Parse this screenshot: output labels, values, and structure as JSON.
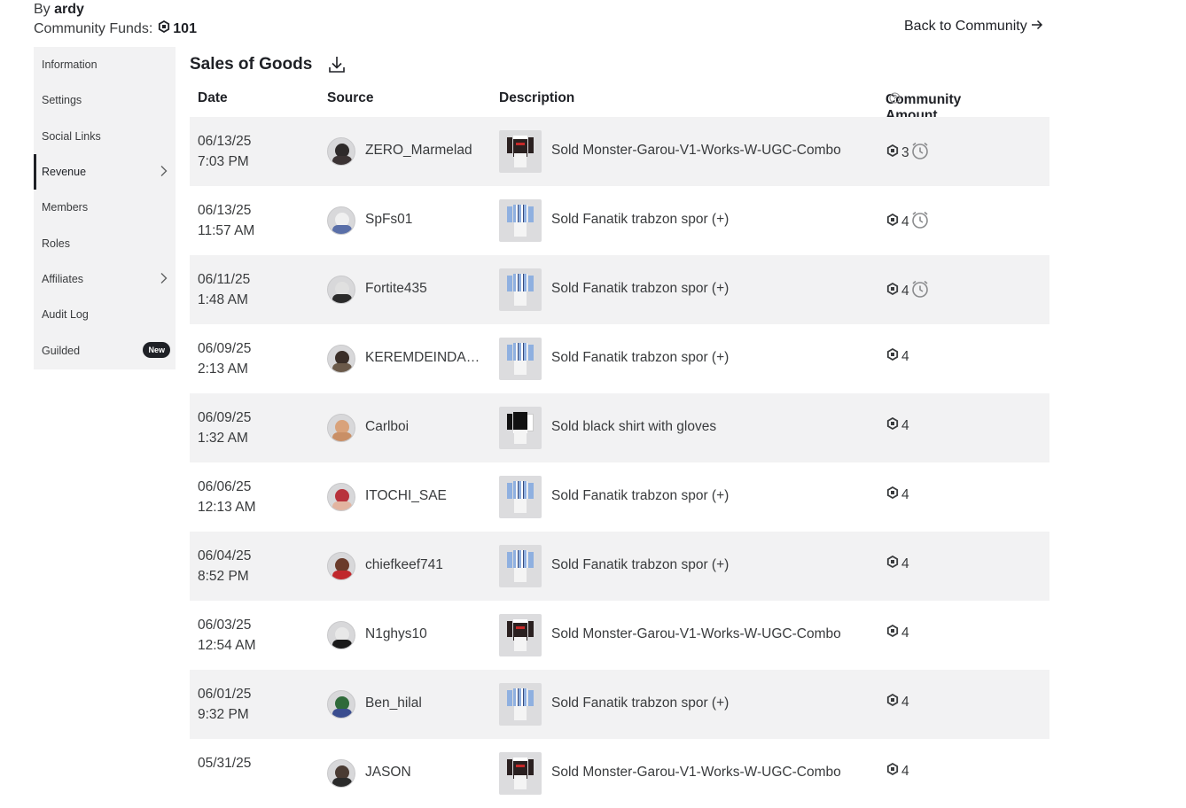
{
  "header": {
    "by_label": "By",
    "owner": "ardy",
    "funds_label": "Community Funds:",
    "funds_amount": "101",
    "back_label": "Back to Community"
  },
  "sidebar": {
    "items": [
      {
        "label": "Information"
      },
      {
        "label": "Settings"
      },
      {
        "label": "Social Links"
      },
      {
        "label": "Revenue",
        "active": true,
        "chevron": true
      },
      {
        "label": "Members"
      },
      {
        "label": "Roles"
      },
      {
        "label": "Affiliates",
        "chevron": true
      },
      {
        "label": "Audit Log"
      },
      {
        "label": "Guilded",
        "badge": "New"
      }
    ]
  },
  "main": {
    "title": "Sales of Goods",
    "columns": {
      "date": "Date",
      "source": "Source",
      "description": "Description",
      "amount": "Community Amount"
    },
    "rows": [
      {
        "date": "06/13/25",
        "time": "7:03 PM",
        "source": "ZERO_Marmelad",
        "description": "Sold Monster-Garou-V1-Works-W-UGC-Combo",
        "amount": "3",
        "pending": true,
        "item": "dark",
        "avatar": {
          "skin": "#2e2a2a",
          "shirt": "#3b3333"
        }
      },
      {
        "date": "06/13/25",
        "time": "11:57 AM",
        "source": "SpFs01",
        "description": "Sold Fanatik trabzon spor (+)",
        "amount": "4",
        "pending": true,
        "item": "stripe",
        "avatar": {
          "skin": "#f0f0f0",
          "shirt": "#5a6fa8"
        }
      },
      {
        "date": "06/11/25",
        "time": "1:48 AM",
        "source": "Fortite435",
        "description": "Sold Fanatik trabzon spor (+)",
        "amount": "4",
        "pending": true,
        "item": "stripe",
        "avatar": {
          "skin": "#e0e0e0",
          "shirt": "#2a2a2a"
        }
      },
      {
        "date": "06/09/25",
        "time": "2:13 AM",
        "source": "KEREMDEINDADMAN",
        "description": "Sold Fanatik trabzon spor (+)",
        "amount": "4",
        "pending": false,
        "item": "stripe",
        "avatar": {
          "skin": "#3a2e28",
          "shirt": "#6b5a4a"
        }
      },
      {
        "date": "06/09/25",
        "time": "1:32 AM",
        "source": "Carlboi",
        "description": "Sold black shirt with gloves",
        "amount": "4",
        "pending": false,
        "item": "black",
        "avatar": {
          "skin": "#d9a27a",
          "shirt": "#c98f66"
        }
      },
      {
        "date": "06/06/25",
        "time": "12:13 AM",
        "source": "ITOCHI_SAE",
        "description": "Sold Fanatik trabzon spor (+)",
        "amount": "4",
        "pending": false,
        "item": "stripe",
        "avatar": {
          "skin": "#b8333c",
          "shirt": "#e2b4a0"
        }
      },
      {
        "date": "06/04/25",
        "time": "8:52 PM",
        "source": "chiefkeef741",
        "description": "Sold Fanatik trabzon spor (+)",
        "amount": "4",
        "pending": false,
        "item": "stripe",
        "avatar": {
          "skin": "#6a3b2a",
          "shirt": "#c0282c"
        }
      },
      {
        "date": "06/03/25",
        "time": "12:54 AM",
        "source": "N1ghys10",
        "description": "Sold Monster-Garou-V1-Works-W-UGC-Combo",
        "amount": "4",
        "pending": false,
        "item": "dark",
        "avatar": {
          "skin": "#e8e8e8",
          "shirt": "#1a1a1a"
        }
      },
      {
        "date": "06/01/25",
        "time": "9:32 PM",
        "source": "Ben_hilal",
        "description": "Sold Fanatik trabzon spor (+)",
        "amount": "4",
        "pending": false,
        "item": "stripe",
        "avatar": {
          "skin": "#2f6a3a",
          "shirt": "#3a4d8f"
        }
      },
      {
        "date": "05/31/25",
        "time": "",
        "source": "JASON",
        "description": "Sold Monster-Garou-V1-Works-W-UGC-Combo",
        "amount": "4",
        "pending": false,
        "item": "dark",
        "avatar": {
          "skin": "#4a3b33",
          "shirt": "#2a2a2a"
        }
      }
    ]
  }
}
